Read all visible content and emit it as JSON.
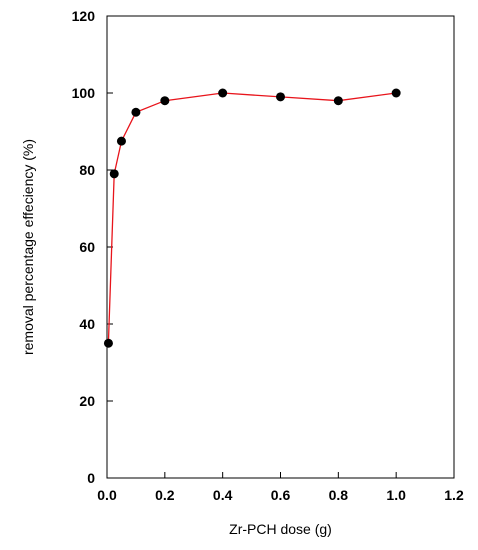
{
  "chart_data": {
    "type": "line",
    "title": "",
    "xlabel": "Zr-PCH dose (g)",
    "ylabel": "removal percentage effeciency (%)",
    "xlim": [
      0.0,
      1.2
    ],
    "ylim": [
      0,
      120
    ],
    "x_ticks": [
      "0.0",
      "0.2",
      "0.4",
      "0.6",
      "0.8",
      "1.0",
      "1.2"
    ],
    "y_ticks": [
      "0",
      "20",
      "40",
      "60",
      "80",
      "100",
      "120"
    ],
    "grid": false,
    "legend": "none",
    "series": [
      {
        "line_color": "#e8141b",
        "marker_color": "#000000",
        "marker": "circle",
        "points": [
          {
            "x": 0.005,
            "y": 35
          },
          {
            "x": 0.025,
            "y": 79
          },
          {
            "x": 0.05,
            "y": 87.5
          },
          {
            "x": 0.1,
            "y": 95
          },
          {
            "x": 0.2,
            "y": 98
          },
          {
            "x": 0.4,
            "y": 100
          },
          {
            "x": 0.6,
            "y": 99
          },
          {
            "x": 0.8,
            "y": 98
          },
          {
            "x": 1.0,
            "y": 100
          }
        ]
      }
    ]
  }
}
